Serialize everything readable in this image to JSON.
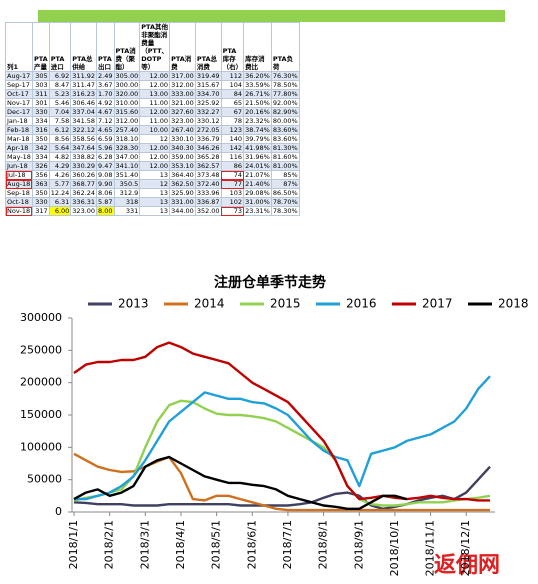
{
  "table": {
    "headers": [
      "列1",
      "PTA产量",
      "PTA进口",
      "PTA总供给",
      "PTA出口",
      "PTA消费（聚酯）",
      "PTA其他非聚酯消费量（PTT、DOTP等）",
      "PTA消费",
      "PTA总消费",
      "PTA库存（右）",
      "库存消费比",
      "PTA负荷"
    ],
    "rows": [
      [
        "Aug-17",
        "305",
        "6.92",
        "311.92",
        "2.49",
        "305.00",
        "12.00",
        "317.00",
        "319.49",
        "112",
        "36.20%",
        "76.30%"
      ],
      [
        "Sep-17",
        "303",
        "8.47",
        "311.47",
        "3.67",
        "300.00",
        "12.00",
        "312.00",
        "315.67",
        "104",
        "33.59%",
        "78.50%"
      ],
      [
        "Oct-17",
        "311",
        "5.23",
        "316.23",
        "1.70",
        "320.00",
        "13.00",
        "333.00",
        "334.70",
        "84",
        "26.71%",
        "77.80%"
      ],
      [
        "Nov-17",
        "301",
        "5.46",
        "306.46",
        "4.92",
        "310.00",
        "11.00",
        "321.00",
        "325.92",
        "65",
        "21.50%",
        "92.00%"
      ],
      [
        "Dec-17",
        "330",
        "7.04",
        "337.04",
        "4.67",
        "315.60",
        "12.00",
        "327.60",
        "332.27",
        "67",
        "20.16%",
        "82.90%"
      ],
      [
        "Jan-18",
        "334",
        "7.58",
        "341.58",
        "7.12",
        "312.00",
        "11.00",
        "323.00",
        "330.12",
        "78",
        "23.32%",
        "80.00%"
      ],
      [
        "Feb-18",
        "316",
        "6.12",
        "322.12",
        "4.65",
        "257.40",
        "10.00",
        "267.40",
        "272.05",
        "123",
        "38.74%",
        "83.60%"
      ],
      [
        "Mar-18",
        "350",
        "8.56",
        "358.56",
        "6.59",
        "318.10",
        "12",
        "330.10",
        "336.79",
        "140",
        "39.79%",
        "83.60%"
      ],
      [
        "Apr-18",
        "342",
        "5.64",
        "347.64",
        "5.96",
        "328.30",
        "12.00",
        "340.30",
        "346.26",
        "142",
        "41.98%",
        "81.30%"
      ],
      [
        "May-18",
        "334",
        "4.82",
        "338.82",
        "6.28",
        "347.00",
        "12.00",
        "359.00",
        "365.28",
        "116",
        "31.96%",
        "81.60%"
      ],
      [
        "Jun-18",
        "326",
        "4.29",
        "330.29",
        "9.47",
        "341.10",
        "12.00",
        "353.10",
        "362.57",
        "86",
        "24.01%",
        "81.00%"
      ],
      [
        "Jul-18",
        "356",
        "4.26",
        "360.26",
        "9.08",
        "351.40",
        "13",
        "364.40",
        "373.48",
        "74",
        "21.07%",
        "85%"
      ],
      [
        "Aug-18",
        "363",
        "5.77",
        "368.77",
        "9.90",
        "350.5",
        "12",
        "362.50",
        "372.40",
        "77",
        "21.40%",
        "87%"
      ],
      [
        "Sep-18",
        "350",
        "12.24",
        "362.24",
        "8.06",
        "312.9",
        "13",
        "325.90",
        "333.96",
        "103",
        "29.08%",
        "86.50%"
      ],
      [
        "Oct-18",
        "330",
        "6.31",
        "336.31",
        "5.87",
        "318",
        "13",
        "331.00",
        "336.87",
        "102",
        "31.00%",
        "78.70%"
      ],
      [
        "Nov-18",
        "317",
        "6.00",
        "323.00",
        "8.00",
        "331",
        "13",
        "344.00",
        "352.00",
        "73",
        "23.31%",
        "78.30%"
      ]
    ]
  },
  "chart_data": {
    "type": "line",
    "title": "注册仓单季节走势",
    "categories": [
      "2018/1/1",
      null,
      null,
      "2018/2/1",
      null,
      null,
      "2018/3/1",
      null,
      null,
      "2018/4/1",
      null,
      null,
      "2018/5/1",
      null,
      null,
      "2018/6/1",
      null,
      null,
      "2018/7/1",
      null,
      null,
      "2018/8/1",
      null,
      null,
      "2018/9/1",
      null,
      null,
      "2018/10/1",
      null,
      null,
      "2018/11/1",
      null,
      null,
      "2018/12/1",
      null,
      null
    ],
    "ylim": [
      0,
      300000
    ],
    "yticks": [
      0,
      50000,
      100000,
      150000,
      200000,
      250000,
      300000
    ],
    "grid": false,
    "legend": "top",
    "series": [
      {
        "name": "2013",
        "color": "#404060",
        "values": [
          15000,
          14000,
          12000,
          12000,
          12000,
          10000,
          10000,
          10000,
          12000,
          12000,
          12000,
          12000,
          12000,
          12000,
          10000,
          10000,
          10000,
          10000,
          10000,
          12000,
          15000,
          22000,
          28000,
          30000,
          25000,
          10000,
          5000,
          8000,
          12000,
          18000,
          22000,
          25000,
          20000,
          30000,
          50000,
          70000
        ]
      },
      {
        "name": "2014",
        "color": "#d0701c",
        "values": [
          90000,
          80000,
          70000,
          65000,
          62000,
          63000,
          70000,
          78000,
          85000,
          60000,
          20000,
          18000,
          25000,
          25000,
          20000,
          15000,
          10000,
          5000,
          3000,
          3000,
          3000,
          3000,
          3000,
          3000,
          3000,
          3000,
          3000,
          3000,
          3000,
          3000,
          3000,
          3000,
          3000,
          3000,
          3000,
          3000
        ]
      },
      {
        "name": "2015",
        "color": "#92d050",
        "values": [
          18000,
          22000,
          25000,
          30000,
          35000,
          55000,
          100000,
          140000,
          165000,
          172000,
          170000,
          160000,
          152000,
          150000,
          150000,
          148000,
          145000,
          140000,
          130000,
          120000,
          110000,
          100000,
          80000,
          40000,
          20000,
          12000,
          10000,
          10000,
          12000,
          15000,
          15000,
          15000,
          18000,
          20000,
          22000,
          25000
        ]
      },
      {
        "name": "2016",
        "color": "#1fa0d8",
        "values": [
          20000,
          20000,
          25000,
          30000,
          40000,
          55000,
          80000,
          110000,
          140000,
          155000,
          170000,
          185000,
          180000,
          175000,
          175000,
          170000,
          168000,
          160000,
          150000,
          130000,
          110000,
          95000,
          85000,
          80000,
          40000,
          90000,
          95000,
          100000,
          110000,
          115000,
          120000,
          130000,
          140000,
          160000,
          190000,
          210000
        ]
      },
      {
        "name": "2017",
        "color": "#c00000",
        "values": [
          215000,
          228000,
          232000,
          232000,
          235000,
          235000,
          240000,
          255000,
          262000,
          255000,
          245000,
          240000,
          235000,
          230000,
          215000,
          200000,
          190000,
          180000,
          170000,
          150000,
          130000,
          110000,
          80000,
          40000,
          20000,
          22000,
          25000,
          22000,
          20000,
          22000,
          25000,
          22000,
          20000,
          20000,
          18000,
          18000
        ]
      },
      {
        "name": "2018",
        "color": "#000000",
        "values": [
          20000,
          30000,
          35000,
          25000,
          30000,
          40000,
          70000,
          80000,
          85000,
          75000,
          65000,
          55000,
          50000,
          45000,
          45000,
          42000,
          40000,
          35000,
          25000,
          20000,
          15000,
          10000,
          8000,
          5000,
          5000,
          15000,
          25000,
          25000,
          20000,
          null,
          null,
          null,
          null,
          null,
          null,
          null
        ]
      }
    ]
  },
  "watermark": "返佣网"
}
